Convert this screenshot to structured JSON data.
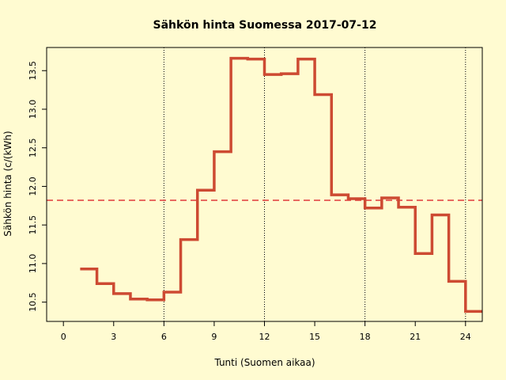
{
  "chart_data": {
    "type": "line",
    "title": "Sähkön hinta Suomessa 2017-07-12",
    "xlabel": "Tunti (Suomen aikaa)",
    "ylabel": "Sähkön hinta (c/(kWh)",
    "xlim": [
      -1,
      25
    ],
    "ylim": [
      10.25,
      13.8
    ],
    "x_ticks": [
      0,
      3,
      6,
      9,
      12,
      15,
      18,
      21,
      24
    ],
    "y_ticks": [
      10.5,
      11.0,
      11.5,
      12.0,
      12.5,
      13.0,
      13.5
    ],
    "x_tick_labels": [
      "0",
      "3",
      "6",
      "9",
      "12",
      "15",
      "18",
      "21",
      "24"
    ],
    "y_tick_labels": [
      "10.5",
      "11.0",
      "11.5",
      "12.0",
      "12.5",
      "13.0",
      "13.5"
    ],
    "vertical_reference_lines": [
      6,
      12,
      18,
      24
    ],
    "step": "post",
    "x": [
      1,
      2,
      3,
      4,
      5,
      6,
      7,
      8,
      9,
      10,
      11,
      12,
      13,
      14,
      15,
      16,
      17,
      18,
      19,
      20,
      21,
      22,
      23,
      24
    ],
    "y": [
      10.93,
      10.74,
      10.61,
      10.54,
      10.53,
      10.63,
      11.31,
      11.95,
      12.45,
      13.66,
      13.65,
      13.45,
      13.46,
      13.65,
      13.19,
      11.89,
      11.84,
      11.72,
      11.85,
      11.73,
      11.13,
      11.63,
      10.77,
      10.38
    ],
    "mean": 11.82,
    "grid": false,
    "colors": {
      "series": "#cd4a32",
      "mean_line": "#e03a3a",
      "background": "#fffbd1",
      "axis": "#000000"
    }
  }
}
